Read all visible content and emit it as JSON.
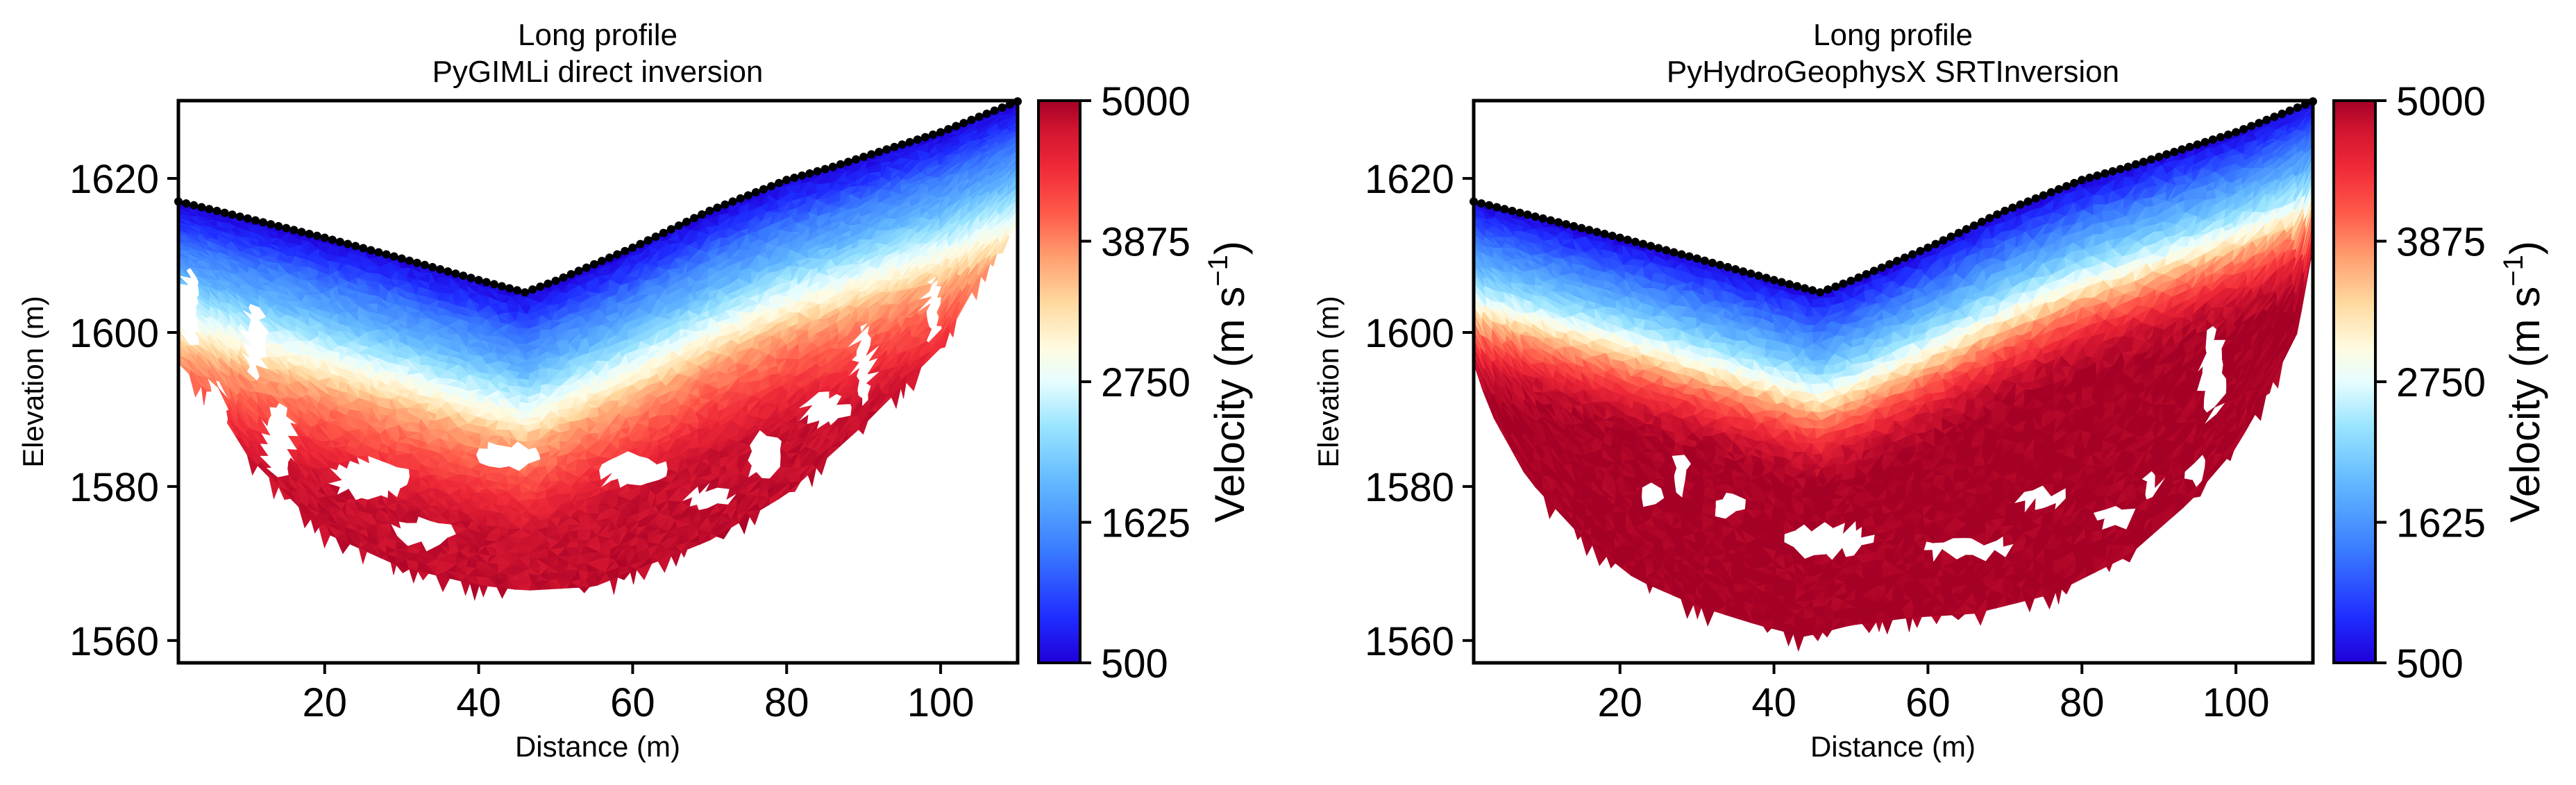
{
  "chart_data": [
    {
      "type": "heatmap",
      "subtype": "triangular-mesh",
      "title": "Long profile\nPyGIMLi direct inversion",
      "title_lines": [
        "Long profile",
        "PyGIMLi direct inversion"
      ],
      "xlabel": "Distance (m)",
      "ylabel": "Elevation (m)",
      "xlim": [
        1,
        110
      ],
      "ylim": [
        1557.1,
        1630.1
      ],
      "xticks": [
        20,
        40,
        60,
        80,
        100
      ],
      "xtick_labels": [
        "20",
        "40",
        "60",
        "80",
        "100"
      ],
      "yticks": [
        1560,
        1580,
        1600,
        1620
      ],
      "ytick_labels": [
        "1560",
        "1580",
        "1600",
        "1620"
      ],
      "colorbar": {
        "label": "Velocity (m s⁻¹)",
        "label_text": "Velocity (m s",
        "label_sup": "−1",
        "label_close": ")",
        "range": [
          500,
          5000
        ],
        "ticks": [
          500,
          1625,
          2750,
          3875,
          5000
        ],
        "tick_labels": [
          "500",
          "1625",
          "2750",
          "3875",
          "5000"
        ],
        "colormap": "RdYlBu_r"
      },
      "electrodes": {
        "distance": [
          1,
          10,
          20,
          30,
          40,
          46,
          50,
          60,
          70,
          80,
          86,
          90,
          100,
          110
        ],
        "elevation": [
          1617,
          1614.8,
          1612.3,
          1609.6,
          1606.8,
          1605.2,
          1606.7,
          1611.0,
          1615.8,
          1619.8,
          1621.5,
          1622.8,
          1626.0,
          1630.0
        ]
      },
      "coverage_bottom": {
        "distance": [
          1,
          5,
          10,
          20,
          30,
          40,
          46,
          55,
          60,
          70,
          80,
          90,
          100,
          105,
          110
        ],
        "elevation": [
          1596,
          1592,
          1584,
          1574,
          1569.5,
          1567.2,
          1566.5,
          1567,
          1569,
          1573,
          1579,
          1588,
          1598,
          1607,
          1614
        ]
      },
      "velocity_depth_profile": {
        "depth_m": [
          0,
          3,
          6,
          10,
          14,
          17,
          20,
          24,
          28,
          32,
          60
        ],
        "velocity_m_s": [
          500,
          900,
          1400,
          1900,
          2600,
          3100,
          3700,
          4100,
          4500,
          4800,
          5000
        ]
      },
      "gaps": [
        {
          "distance": 2.5,
          "elevation": 1603,
          "rx": 1.2,
          "ry": 5
        },
        {
          "distance": 11,
          "elevation": 1599,
          "rx": 1.4,
          "ry": 5
        },
        {
          "distance": 6,
          "elevation": 1588,
          "rx": 1.2,
          "ry": 6
        },
        {
          "distance": 14,
          "elevation": 1586,
          "rx": 2,
          "ry": 5
        },
        {
          "distance": 26,
          "elevation": 1581,
          "rx": 5,
          "ry": 2.5
        },
        {
          "distance": 33,
          "elevation": 1574,
          "rx": 4,
          "ry": 1.8
        },
        {
          "distance": 44,
          "elevation": 1584,
          "rx": 4,
          "ry": 1.6
        },
        {
          "distance": 60,
          "elevation": 1582,
          "rx": 4.5,
          "ry": 2
        },
        {
          "distance": 70,
          "elevation": 1578.5,
          "rx": 3,
          "ry": 1.3
        },
        {
          "distance": 77,
          "elevation": 1584,
          "rx": 2,
          "ry": 3
        },
        {
          "distance": 85,
          "elevation": 1590,
          "rx": 3,
          "ry": 2
        },
        {
          "distance": 90,
          "elevation": 1596,
          "rx": 1.2,
          "ry": 5
        },
        {
          "distance": 99,
          "elevation": 1603,
          "rx": 1,
          "ry": 4
        },
        {
          "distance": 94,
          "elevation": 1586,
          "rx": 1,
          "ry": 3
        }
      ]
    },
    {
      "type": "heatmap",
      "subtype": "triangular-mesh",
      "title": "Long profile\nPyHydroGeophysX SRTInversion",
      "title_lines": [
        "Long profile",
        "PyHydroGeophysX SRTInversion"
      ],
      "xlabel": "Distance (m)",
      "ylabel": "Elevation (m)",
      "xlim": [
        1,
        110
      ],
      "ylim": [
        1557.1,
        1630.1
      ],
      "xticks": [
        20,
        40,
        60,
        80,
        100
      ],
      "xtick_labels": [
        "20",
        "40",
        "60",
        "80",
        "100"
      ],
      "yticks": [
        1560,
        1580,
        1600,
        1620
      ],
      "ytick_labels": [
        "1560",
        "1580",
        "1600",
        "1620"
      ],
      "colorbar": {
        "label": "Velocity (m s⁻¹)",
        "label_text": "Velocity (m s",
        "label_sup": "−1",
        "label_close": ")",
        "range": [
          500,
          5000
        ],
        "ticks": [
          500,
          1625,
          2750,
          3875,
          5000
        ],
        "tick_labels": [
          "500",
          "1625",
          "2750",
          "3875",
          "5000"
        ],
        "colormap": "RdYlBu_r"
      },
      "electrodes": {
        "distance": [
          1,
          10,
          20,
          30,
          40,
          46,
          50,
          60,
          70,
          80,
          86,
          90,
          100,
          110
        ],
        "elevation": [
          1617,
          1614.8,
          1612.3,
          1609.6,
          1606.8,
          1605.2,
          1606.7,
          1611.0,
          1615.8,
          1619.8,
          1621.5,
          1622.8,
          1626.0,
          1630.0
        ]
      },
      "coverage_bottom": {
        "distance": [
          1,
          3,
          8,
          15,
          22,
          30,
          38,
          44,
          50,
          58,
          66,
          76,
          86,
          94,
          100,
          104,
          108,
          110
        ],
        "elevation": [
          1596,
          1590,
          1581,
          1573.5,
          1568,
          1564.5,
          1562,
          1560.5,
          1562,
          1563,
          1563.5,
          1566,
          1571,
          1578,
          1585,
          1592,
          1600,
          1611
        ]
      },
      "velocity_depth_profile": {
        "depth_m": [
          0,
          3,
          6,
          9,
          12,
          14,
          16,
          19,
          22,
          26,
          60
        ],
        "velocity_m_s": [
          500,
          1000,
          1500,
          2000,
          2600,
          3100,
          3700,
          4300,
          4800,
          5000,
          5000
        ]
      },
      "gaps": [
        {
          "distance": 28,
          "elevation": 1582,
          "rx": 1,
          "ry": 3
        },
        {
          "distance": 24,
          "elevation": 1579,
          "rx": 1.2,
          "ry": 1.5
        },
        {
          "distance": 34,
          "elevation": 1577.5,
          "rx": 2,
          "ry": 1.5
        },
        {
          "distance": 47,
          "elevation": 1573,
          "rx": 5.5,
          "ry": 2
        },
        {
          "distance": 65,
          "elevation": 1572,
          "rx": 6,
          "ry": 1.2
        },
        {
          "distance": 75,
          "elevation": 1578.5,
          "rx": 3,
          "ry": 1.2
        },
        {
          "distance": 84,
          "elevation": 1576,
          "rx": 2.5,
          "ry": 1.2
        },
        {
          "distance": 97,
          "elevation": 1595,
          "rx": 1.5,
          "ry": 6
        },
        {
          "distance": 95,
          "elevation": 1582,
          "rx": 1.3,
          "ry": 2
        },
        {
          "distance": 89,
          "elevation": 1580,
          "rx": 1,
          "ry": 2
        }
      ]
    }
  ]
}
